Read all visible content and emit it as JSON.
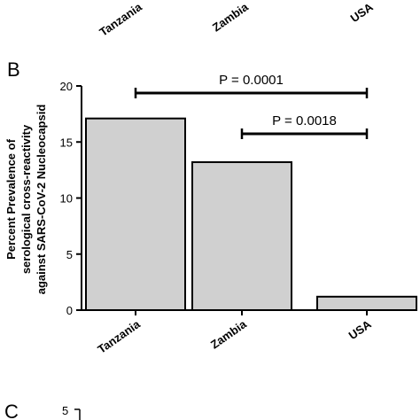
{
  "panel_top": {
    "categories": [
      "Tanzania",
      "Zambia",
      "USA"
    ]
  },
  "panel_b": {
    "letter": "B"
  },
  "panel_c": {
    "letter": "C",
    "partial_tick": "5"
  },
  "chart_data": {
    "type": "bar",
    "title": "",
    "ylabel": [
      "Percent Prevalence of",
      "serological cross-reactivity",
      "against SARS-CoV-2 Nucleocapsid"
    ],
    "categories": [
      "Tanzania",
      "Zambia",
      "USA"
    ],
    "values": [
      17.1,
      13.2,
      1.2
    ],
    "ylim": [
      0,
      20
    ],
    "yticks": [
      "0",
      "5",
      "10",
      "15",
      "20"
    ],
    "bar_color": "#d0d0d0",
    "grid": false,
    "annotations": [
      {
        "from": "Tanzania",
        "to": "USA",
        "text": "P = 0.0001"
      },
      {
        "from": "Zambia",
        "to": "USA",
        "text": "P = 0.0018"
      }
    ]
  }
}
